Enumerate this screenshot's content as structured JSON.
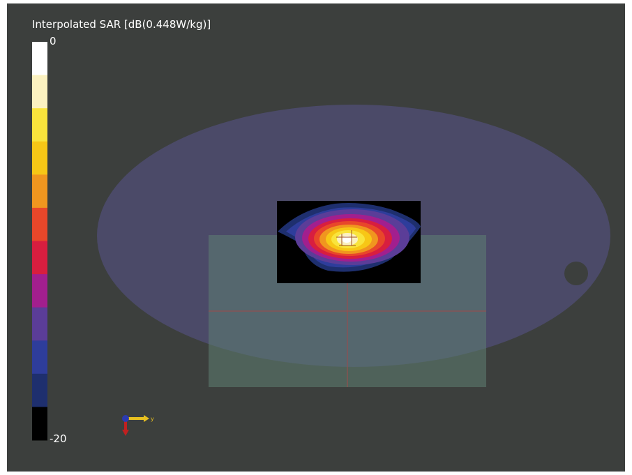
{
  "title": "Interpolated SAR [dB(0.448W/kg)]",
  "colorbar": {
    "top_label": "0",
    "bottom_label": "-20",
    "colors": [
      "#ffffff",
      "#fbf1c0",
      "#f9e43c",
      "#f7c716",
      "#f0961f",
      "#e8472a",
      "#d81e3f",
      "#a21f8e",
      "#5b3d98",
      "#2e3d9b",
      "#1e2f6e",
      "#000000"
    ]
  },
  "axis_label": "y"
}
